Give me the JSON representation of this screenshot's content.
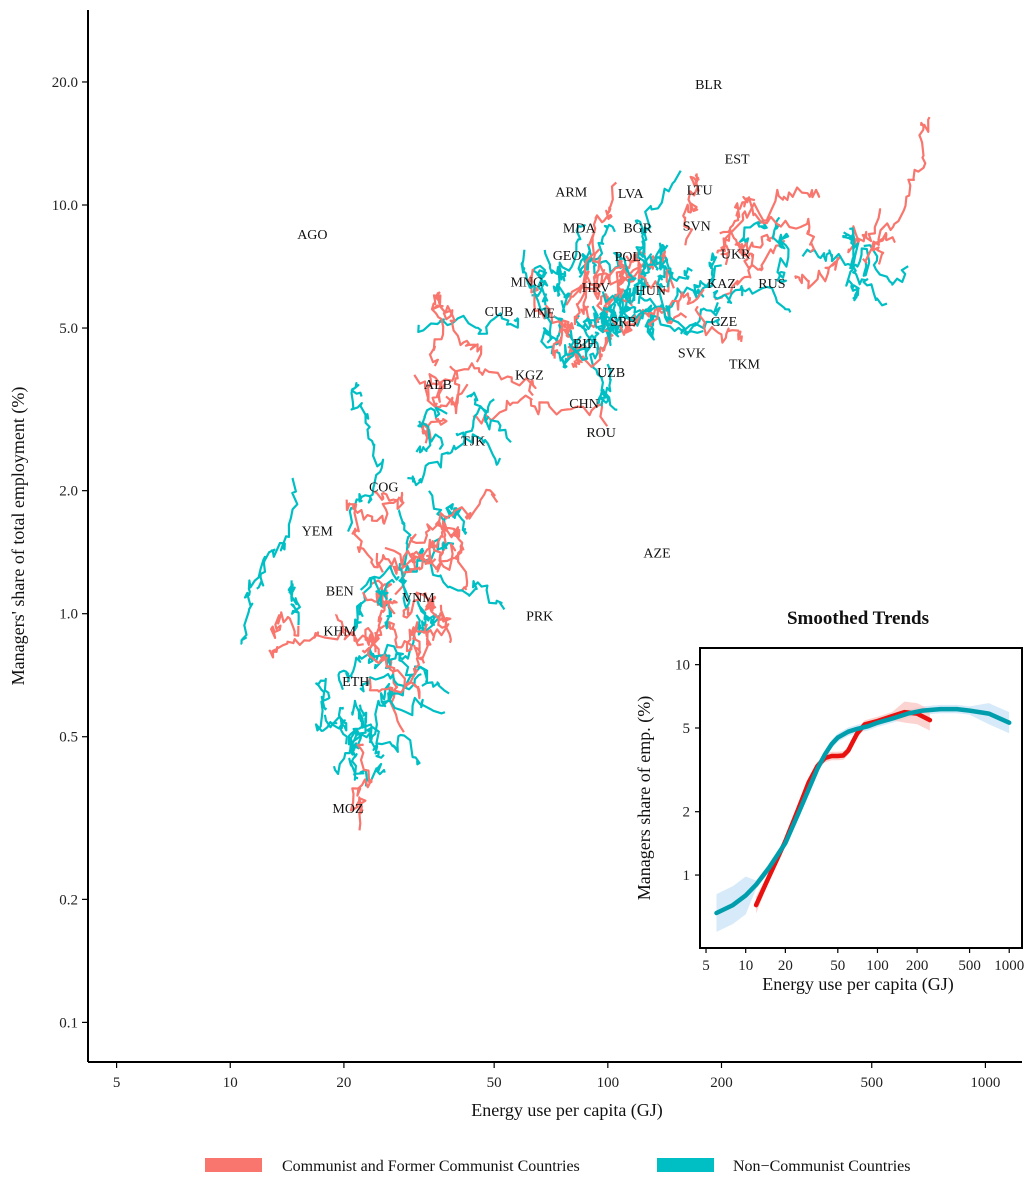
{
  "colors": {
    "communist": "#F8766D",
    "non_communist": "#00BFC4",
    "communist_smooth": "#E8110F",
    "non_communist_smooth": "#009EAC",
    "ribbon_communist": "#F9C5C2",
    "ribbon_non_communist": "#C9E3F7"
  },
  "legend": {
    "items": [
      {
        "key": "communist",
        "label": "Communist and Former Communist Countries"
      },
      {
        "key": "non_communist",
        "label": "Non−Communist Countries"
      }
    ]
  },
  "chart_data": [
    {
      "type": "line",
      "xlabel": "Energy use per capita (GJ)",
      "ylabel": "Managers' share of total employment (%)",
      "x_scale": "log",
      "y_scale": "log",
      "xlim": [
        4.2,
        1250
      ],
      "ylim": [
        0.08,
        30
      ],
      "x_ticks": [
        5,
        10,
        20,
        50,
        100,
        200,
        500,
        1000
      ],
      "x_tick_labels": [
        "5",
        "10",
        "20",
        "50",
        "100",
        "200",
        "500",
        "1000"
      ],
      "y_ticks": [
        0.1,
        0.2,
        0.5,
        1,
        2,
        5,
        10,
        20
      ],
      "y_tick_labels": [
        "0.1",
        "0.2",
        "0.5",
        "1.0",
        "2.0",
        "5.0",
        "10.0",
        "20.0"
      ],
      "grid": false,
      "legend_position": "bottom",
      "series": [
        {
          "key": "communist",
          "name": "Communist and Former Communist Countries"
        },
        {
          "key": "non_communist",
          "name": "Non−Communist Countries"
        }
      ],
      "country_labels": [
        {
          "text": "BLR",
          "x": 185,
          "y": 19.8
        },
        {
          "text": "EST",
          "x": 220,
          "y": 13.0
        },
        {
          "text": "ARM",
          "x": 80,
          "y": 10.8
        },
        {
          "text": "LVA",
          "x": 115,
          "y": 10.7
        },
        {
          "text": "LTU",
          "x": 175,
          "y": 10.9
        },
        {
          "text": "AGO",
          "x": 16.5,
          "y": 8.5
        },
        {
          "text": "MDA",
          "x": 84,
          "y": 8.8
        },
        {
          "text": "BGR",
          "x": 120,
          "y": 8.8
        },
        {
          "text": "SVN",
          "x": 172,
          "y": 8.9
        },
        {
          "text": "GEO",
          "x": 78,
          "y": 7.55
        },
        {
          "text": "POL",
          "x": 113,
          "y": 7.5
        },
        {
          "text": "UKR",
          "x": 218,
          "y": 7.6
        },
        {
          "text": "MNG",
          "x": 61,
          "y": 6.5
        },
        {
          "text": "KAZ",
          "x": 200,
          "y": 6.45
        },
        {
          "text": "RUS",
          "x": 272,
          "y": 6.45
        },
        {
          "text": "HRV",
          "x": 93,
          "y": 6.3
        },
        {
          "text": "HUN",
          "x": 130,
          "y": 6.2
        },
        {
          "text": "CUB",
          "x": 51.5,
          "y": 5.5
        },
        {
          "text": "MNE",
          "x": 66,
          "y": 5.45
        },
        {
          "text": "CZE",
          "x": 203,
          "y": 5.2
        },
        {
          "text": "SRB",
          "x": 110,
          "y": 5.2
        },
        {
          "text": "BIH",
          "x": 87,
          "y": 4.6
        },
        {
          "text": "SVK",
          "x": 167,
          "y": 4.35
        },
        {
          "text": "TKM",
          "x": 230,
          "y": 4.1
        },
        {
          "text": "KGZ",
          "x": 62,
          "y": 3.85
        },
        {
          "text": "UZB",
          "x": 102,
          "y": 3.9
        },
        {
          "text": "ALB",
          "x": 35.5,
          "y": 3.65
        },
        {
          "text": "CHN",
          "x": 86.5,
          "y": 3.28
        },
        {
          "text": "ROU",
          "x": 96,
          "y": 2.78
        },
        {
          "text": "TJK",
          "x": 44,
          "y": 2.65
        },
        {
          "text": "COG",
          "x": 25.5,
          "y": 2.05
        },
        {
          "text": "YEM",
          "x": 17,
          "y": 1.6
        },
        {
          "text": "AZE",
          "x": 135,
          "y": 1.41
        },
        {
          "text": "BEN",
          "x": 19.5,
          "y": 1.14
        },
        {
          "text": "VNM",
          "x": 31.5,
          "y": 1.1
        },
        {
          "text": "PRK",
          "x": 66,
          "y": 0.99
        },
        {
          "text": "KHM",
          "x": 19.5,
          "y": 0.91
        },
        {
          "text": "ETH",
          "x": 21.5,
          "y": 0.685
        },
        {
          "text": "MOZ",
          "x": 20.5,
          "y": 0.335
        }
      ]
    },
    {
      "type": "line",
      "title": "Smoothed Trends",
      "xlabel": "Energy use per capita (GJ)",
      "ylabel": "Managers share of emp. (%)",
      "x_scale": "log",
      "y_scale": "log",
      "xlim": [
        4.5,
        1250
      ],
      "ylim": [
        0.45,
        12
      ],
      "x_ticks": [
        5,
        10,
        20,
        50,
        100,
        200,
        500,
        1000
      ],
      "x_tick_labels": [
        "5",
        "10",
        "20",
        "50",
        "100",
        "200",
        "500",
        "1000"
      ],
      "y_ticks": [
        1,
        2,
        5,
        10
      ],
      "y_tick_labels": [
        "1",
        "2",
        "5",
        "10"
      ],
      "series": [
        {
          "key": "communist",
          "x": [
            12,
            15,
            20,
            25,
            30,
            35,
            40,
            45,
            50,
            55,
            60,
            70,
            80,
            100,
            130,
            160,
            200,
            250
          ],
          "y": [
            0.72,
            0.98,
            1.45,
            2.05,
            2.75,
            3.3,
            3.6,
            3.68,
            3.68,
            3.7,
            3.9,
            4.7,
            5.2,
            5.4,
            5.7,
            5.95,
            5.85,
            5.45
          ]
        },
        {
          "key": "non_communist",
          "x": [
            6,
            8,
            10,
            12,
            15,
            20,
            25,
            30,
            35,
            40,
            45,
            50,
            60,
            70,
            85,
            100,
            130,
            170,
            220,
            300,
            400,
            500,
            700,
            1000
          ],
          "y": [
            0.66,
            0.72,
            0.8,
            0.9,
            1.08,
            1.42,
            1.95,
            2.55,
            3.2,
            3.75,
            4.2,
            4.5,
            4.8,
            4.95,
            5.1,
            5.3,
            5.55,
            5.85,
            6.05,
            6.15,
            6.15,
            6.05,
            5.85,
            5.3
          ]
        }
      ]
    }
  ]
}
